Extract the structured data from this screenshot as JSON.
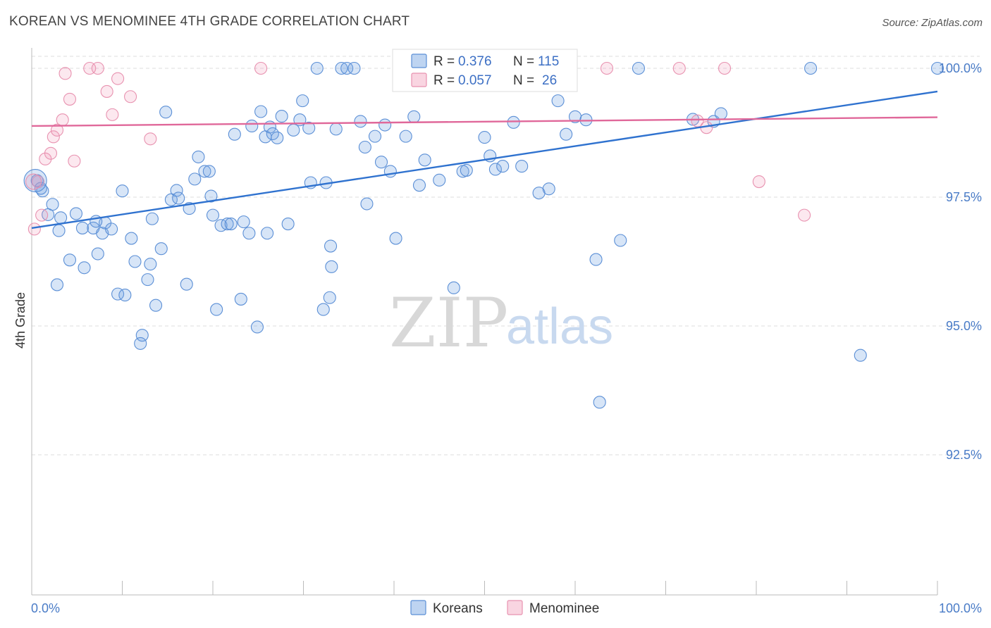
{
  "title": "KOREAN VS MENOMINEE 4TH GRADE CORRELATION CHART",
  "source": "Source: ZipAtlas.com",
  "watermark": {
    "zip": "ZIP",
    "atlas": "atlas"
  },
  "colors": {
    "korean_fill": "rgba(110,160,225,0.28)",
    "korean_stroke": "#5b8fd6",
    "korean_line": "#2f72cf",
    "menominee_fill": "rgba(240,150,180,0.22)",
    "menominee_stroke": "#e892b0",
    "menominee_line": "#e0689a",
    "grid": "#dddddd",
    "tick_text": "#4a7cc7"
  },
  "stats_legend": {
    "rows": [
      {
        "r_label": "R =",
        "r_value": "0.376",
        "n_label": "N =",
        "n_value": "115"
      },
      {
        "r_label": "R =",
        "r_value": "0.057",
        "n_label": "N =",
        "n_value": "26"
      }
    ]
  },
  "chart_data": {
    "type": "scatter",
    "xlabel": "",
    "ylabel": "4th Grade",
    "xlim": [
      0,
      100
    ],
    "ylim": [
      90.0,
      100.4
    ],
    "x_tick_labels": [
      "0.0%",
      "100.0%"
    ],
    "y_ticks": [
      {
        "value": 92.5,
        "label": "92.5%"
      },
      {
        "value": 95.0,
        "label": "95.0%"
      },
      {
        "value": 97.5,
        "label": "97.5%"
      },
      {
        "value": 100.0,
        "label": "100.0%"
      }
    ],
    "grid": true,
    "legend": "bottom-center",
    "series": [
      {
        "name": "Koreans",
        "trend": {
          "x": [
            0,
            100
          ],
          "y": [
            96.9,
            99.55
          ]
        },
        "points": [
          [
            0.6,
            97.82
          ],
          [
            1.2,
            97.62
          ],
          [
            1.8,
            97.16
          ],
          [
            2.3,
            97.36
          ],
          [
            2.8,
            95.8
          ],
          [
            3.0,
            96.85
          ],
          [
            3.2,
            97.1
          ],
          [
            4.9,
            97.18
          ],
          [
            4.2,
            96.28
          ],
          [
            5.8,
            96.13
          ],
          [
            5.6,
            96.9
          ],
          [
            6.8,
            96.9
          ],
          [
            7.3,
            96.4
          ],
          [
            7.8,
            96.8
          ],
          [
            8.1,
            97.0
          ],
          [
            8.8,
            96.88
          ],
          [
            9.5,
            95.62
          ],
          [
            10.3,
            95.6
          ],
          [
            10.0,
            97.62
          ],
          [
            11.0,
            96.7
          ],
          [
            11.4,
            96.25
          ],
          [
            12.2,
            94.82
          ],
          [
            12.0,
            94.66
          ],
          [
            12.8,
            95.9
          ],
          [
            13.1,
            96.2
          ],
          [
            13.7,
            95.4
          ],
          [
            14.3,
            96.5
          ],
          [
            14.8,
            99.15
          ],
          [
            15.4,
            97.45
          ],
          [
            16.0,
            97.63
          ],
          [
            16.2,
            97.48
          ],
          [
            17.1,
            95.81
          ],
          [
            17.4,
            97.28
          ],
          [
            18.0,
            97.85
          ],
          [
            18.4,
            98.28
          ],
          [
            19.1,
            98.0
          ],
          [
            19.6,
            98.0
          ],
          [
            20.0,
            97.15
          ],
          [
            20.4,
            95.32
          ],
          [
            20.9,
            96.95
          ],
          [
            21.6,
            96.98
          ],
          [
            22.0,
            96.98
          ],
          [
            22.4,
            98.72
          ],
          [
            23.1,
            95.52
          ],
          [
            23.4,
            97.02
          ],
          [
            24.0,
            96.8
          ],
          [
            24.3,
            98.88
          ],
          [
            24.9,
            94.98
          ],
          [
            25.3,
            99.16
          ],
          [
            25.8,
            98.67
          ],
          [
            26.3,
            98.86
          ],
          [
            26.6,
            98.73
          ],
          [
            27.1,
            98.65
          ],
          [
            27.6,
            99.07
          ],
          [
            28.3,
            96.98
          ],
          [
            28.9,
            98.8
          ],
          [
            29.6,
            99.0
          ],
          [
            29.9,
            99.37
          ],
          [
            30.6,
            98.84
          ],
          [
            30.8,
            97.78
          ],
          [
            31.5,
            100.0
          ],
          [
            32.2,
            95.32
          ],
          [
            32.5,
            97.78
          ],
          [
            32.9,
            95.55
          ],
          [
            33.1,
            96.15
          ],
          [
            33.6,
            98.82
          ],
          [
            34.2,
            100.0
          ],
          [
            34.8,
            100.0
          ],
          [
            35.6,
            100.0
          ],
          [
            36.3,
            98.97
          ],
          [
            36.8,
            98.47
          ],
          [
            37.0,
            97.37
          ],
          [
            37.9,
            98.68
          ],
          [
            38.6,
            98.18
          ],
          [
            39.0,
            98.9
          ],
          [
            39.6,
            98.0
          ],
          [
            40.2,
            96.7
          ],
          [
            40.6,
            100.0
          ],
          [
            41.3,
            98.68
          ],
          [
            42.2,
            99.06
          ],
          [
            42.8,
            97.73
          ],
          [
            43.4,
            98.22
          ],
          [
            45.0,
            97.83
          ],
          [
            46.6,
            95.74
          ],
          [
            47.6,
            98.0
          ],
          [
            48.0,
            98.02
          ],
          [
            49.0,
            100.0
          ],
          [
            50.0,
            98.66
          ],
          [
            50.6,
            98.3
          ],
          [
            51.2,
            98.04
          ],
          [
            52.0,
            98.1
          ],
          [
            53.2,
            98.95
          ],
          [
            54.1,
            98.1
          ],
          [
            56.0,
            97.58
          ],
          [
            57.1,
            97.66
          ],
          [
            58.1,
            99.37
          ],
          [
            59.0,
            98.72
          ],
          [
            60.0,
            99.06
          ],
          [
            61.2,
            99.0
          ],
          [
            62.3,
            96.29
          ],
          [
            62.7,
            93.52
          ],
          [
            65.0,
            96.66
          ],
          [
            67.0,
            100.0
          ],
          [
            73.0,
            99.01
          ],
          [
            75.3,
            98.97
          ],
          [
            76.1,
            99.12
          ],
          [
            86.0,
            100.0
          ],
          [
            91.5,
            94.43
          ],
          [
            100.0,
            100.0
          ],
          [
            1.0,
            97.67
          ],
          [
            7.1,
            97.03
          ],
          [
            13.3,
            97.08
          ],
          [
            19.8,
            97.52
          ],
          [
            26.0,
            96.8
          ],
          [
            33.0,
            96.55
          ]
        ]
      },
      {
        "name": "Menominee",
        "trend": {
          "x": [
            0,
            100
          ],
          "y": [
            98.88,
            99.05
          ]
        },
        "points": [
          [
            0.3,
            96.88
          ],
          [
            0.7,
            97.8
          ],
          [
            1.1,
            97.15
          ],
          [
            1.5,
            98.24
          ],
          [
            2.1,
            98.35
          ],
          [
            2.4,
            98.67
          ],
          [
            2.8,
            98.8
          ],
          [
            3.4,
            99.0
          ],
          [
            3.7,
            99.9
          ],
          [
            4.2,
            99.4
          ],
          [
            4.7,
            98.2
          ],
          [
            6.4,
            100.0
          ],
          [
            7.3,
            100.0
          ],
          [
            8.3,
            99.55
          ],
          [
            8.9,
            99.1
          ],
          [
            9.5,
            99.8
          ],
          [
            10.9,
            99.45
          ],
          [
            13.1,
            98.63
          ],
          [
            25.3,
            100.0
          ],
          [
            63.5,
            100.0
          ],
          [
            71.5,
            100.0
          ],
          [
            73.5,
            98.98
          ],
          [
            74.5,
            98.85
          ],
          [
            76.5,
            100.0
          ],
          [
            80.3,
            97.8
          ],
          [
            85.3,
            97.15
          ]
        ]
      }
    ]
  },
  "bottom_legend": [
    {
      "label": "Koreans"
    },
    {
      "label": "Menominee"
    }
  ]
}
